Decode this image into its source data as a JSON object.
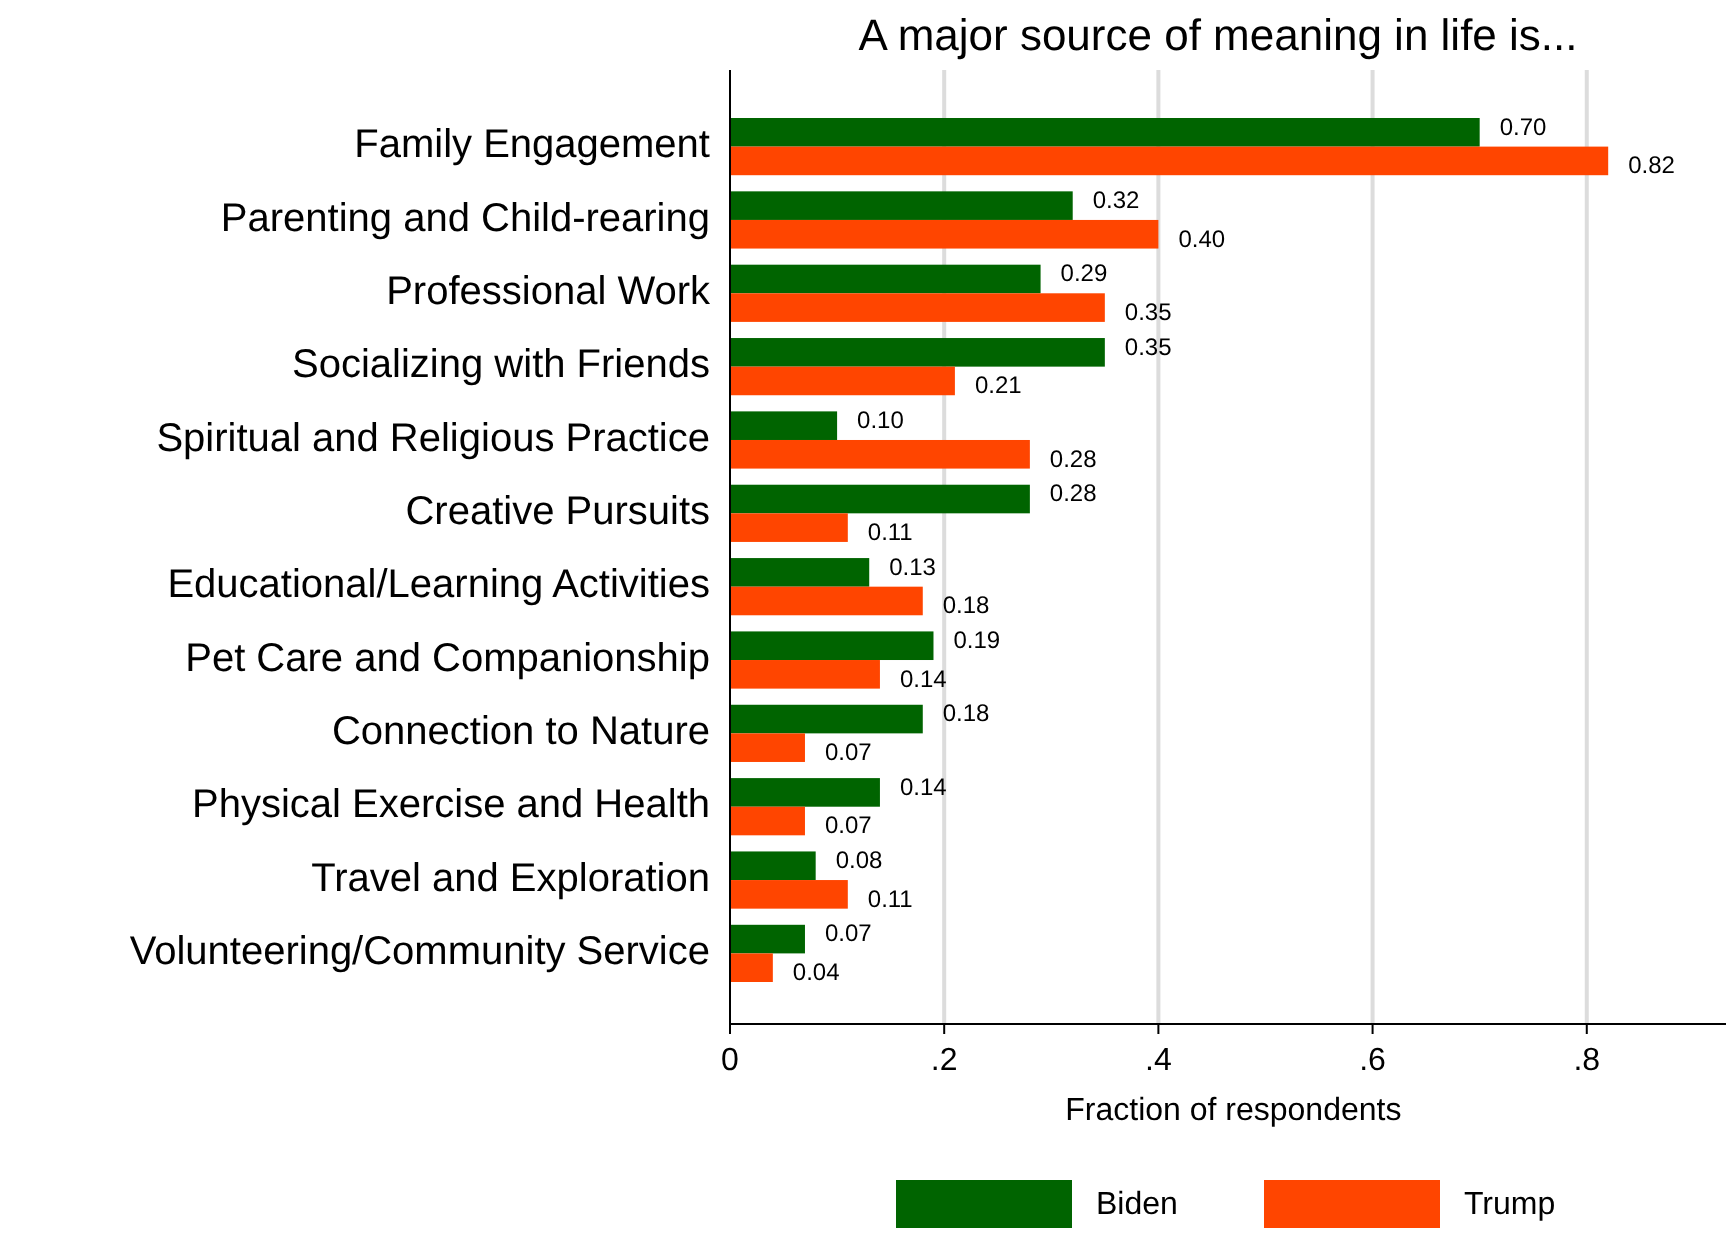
{
  "chart_data": {
    "type": "bar",
    "orientation": "horizontal",
    "title": "A major source of meaning in life is...",
    "xlabel": "Fraction of respondents",
    "categories": [
      "Family Engagement",
      "Parenting and Child-rearing",
      "Professional Work",
      "Socializing with Friends",
      "Spiritual and Religious Practice",
      "Creative Pursuits",
      "Educational/Learning Activities",
      "Pet Care and Companionship",
      "Connection to Nature",
      "Physical Exercise and Health",
      "Travel and Exploration",
      "Volunteering/Community Service"
    ],
    "series": [
      {
        "name": "Biden",
        "color": "#006400",
        "values": [
          0.7,
          0.32,
          0.29,
          0.35,
          0.1,
          0.28,
          0.13,
          0.19,
          0.18,
          0.14,
          0.08,
          0.07
        ],
        "value_labels": [
          "0.70",
          "0.32",
          "0.29",
          "0.35",
          "0.10",
          "0.28",
          "0.13",
          "0.19",
          "0.18",
          "0.14",
          "0.08",
          "0.07"
        ]
      },
      {
        "name": "Trump",
        "color": "#ff4500",
        "values": [
          0.82,
          0.4,
          0.35,
          0.21,
          0.28,
          0.11,
          0.18,
          0.14,
          0.07,
          0.07,
          0.11,
          0.04
        ],
        "value_labels": [
          "0.82",
          "0.40",
          "0.35",
          "0.21",
          "0.28",
          "0.11",
          "0.18",
          "0.14",
          "0.07",
          "0.07",
          "0.11",
          "0.04"
        ]
      }
    ],
    "xlim": [
      0,
      0.93
    ],
    "xticks": [
      0,
      {
        "value": 0.2,
        "label": ".2"
      },
      {
        "value": 0.4,
        "label": ".4"
      },
      {
        "value": 0.6,
        "label": ".6"
      },
      {
        "value": 0.8,
        "label": ".8"
      }
    ],
    "grid": "x",
    "legend": "bottom"
  }
}
